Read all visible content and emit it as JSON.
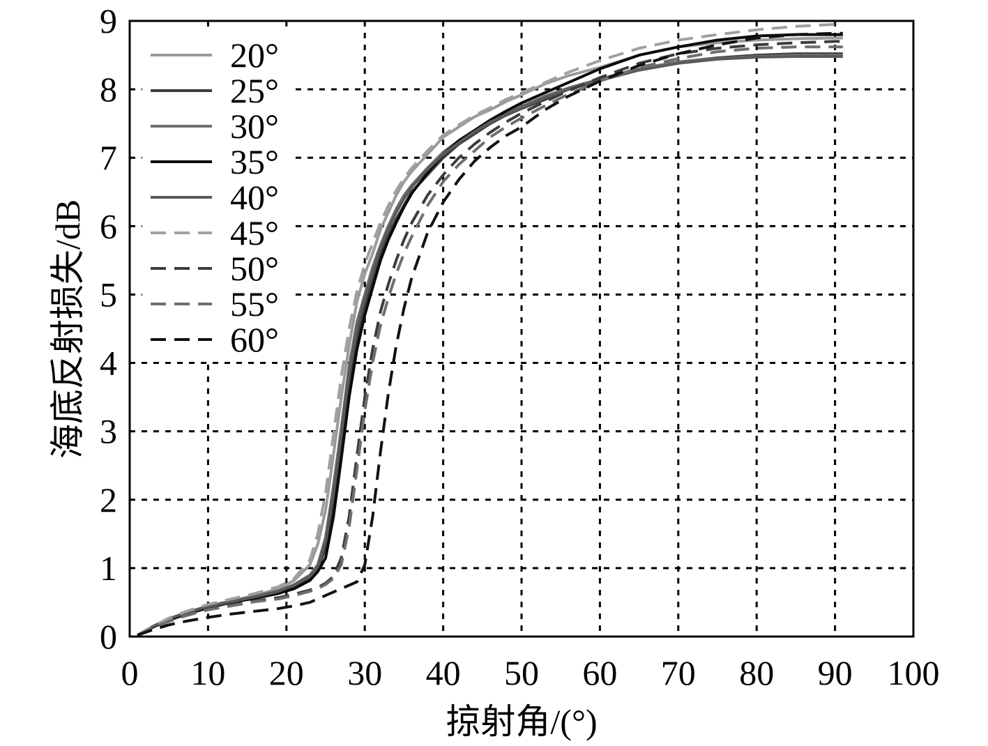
{
  "chart_data": {
    "type": "line",
    "title": "",
    "xlabel": "掠射角/(°)",
    "ylabel": "海底反射损失/dB",
    "xlim": [
      0,
      100
    ],
    "ylim": [
      0,
      9
    ],
    "xticks": [
      0,
      10,
      20,
      30,
      40,
      50,
      60,
      70,
      80,
      90,
      100
    ],
    "yticks": [
      0,
      1,
      2,
      3,
      4,
      5,
      6,
      7,
      8,
      9
    ],
    "xtick_labels": [
      "0",
      "10",
      "20",
      "30",
      "40",
      "50",
      "60",
      "70",
      "80",
      "90",
      "100"
    ],
    "ytick_labels": [
      "0",
      "1",
      "2",
      "3",
      "4",
      "5",
      "6",
      "7",
      "8",
      "9"
    ],
    "grid": true,
    "legend_position": "top-left",
    "x": [
      1,
      3,
      5,
      7,
      10,
      13,
      16,
      19,
      21,
      23,
      24,
      25,
      26,
      27,
      28,
      29,
      30,
      31,
      32,
      33,
      34,
      35,
      36,
      38,
      40,
      42,
      44,
      46,
      48,
      50,
      53,
      56,
      60,
      65,
      70,
      75,
      80,
      85,
      90,
      91
    ],
    "series": [
      {
        "name": "20°",
        "color": "#9a9a9a",
        "dash": "solid",
        "values": [
          0.02,
          0.15,
          0.26,
          0.34,
          0.45,
          0.52,
          0.6,
          0.7,
          0.82,
          1.05,
          1.35,
          1.85,
          2.65,
          3.5,
          4.25,
          4.9,
          5.3,
          5.6,
          5.95,
          6.2,
          6.45,
          6.65,
          6.8,
          7.05,
          7.3,
          7.45,
          7.6,
          7.7,
          7.82,
          7.92,
          8.08,
          8.2,
          8.32,
          8.5,
          8.62,
          8.68,
          8.72,
          8.74,
          8.75,
          8.75
        ]
      },
      {
        "name": "25°",
        "color": "#3c3c3c",
        "dash": "solid",
        "values": [
          0.02,
          0.14,
          0.25,
          0.33,
          0.43,
          0.5,
          0.57,
          0.64,
          0.72,
          0.85,
          0.98,
          1.3,
          1.95,
          2.85,
          3.75,
          4.35,
          4.8,
          5.2,
          5.6,
          5.85,
          6.1,
          6.3,
          6.5,
          6.75,
          7.0,
          7.2,
          7.35,
          7.5,
          7.62,
          7.72,
          7.85,
          8.0,
          8.15,
          8.3,
          8.4,
          8.46,
          8.5,
          8.52,
          8.52,
          8.52
        ]
      },
      {
        "name": "30°",
        "color": "#6e6e6e",
        "dash": "solid",
        "values": [
          0.02,
          0.15,
          0.26,
          0.34,
          0.44,
          0.52,
          0.59,
          0.67,
          0.76,
          0.9,
          1.05,
          1.45,
          2.2,
          3.05,
          3.95,
          4.6,
          5.0,
          5.4,
          5.72,
          6.0,
          6.25,
          6.45,
          6.6,
          6.85,
          7.08,
          7.25,
          7.4,
          7.53,
          7.65,
          7.75,
          7.9,
          8.02,
          8.15,
          8.3,
          8.4,
          8.45,
          8.48,
          8.5,
          8.5,
          8.5
        ]
      },
      {
        "name": "35°",
        "color": "#0a0a0a",
        "dash": "solid",
        "values": [
          0.02,
          0.14,
          0.24,
          0.32,
          0.42,
          0.5,
          0.56,
          0.63,
          0.7,
          0.82,
          0.95,
          1.15,
          1.75,
          2.6,
          3.5,
          4.2,
          4.7,
          5.1,
          5.5,
          5.8,
          6.05,
          6.28,
          6.48,
          6.78,
          7.05,
          7.25,
          7.4,
          7.55,
          7.68,
          7.8,
          7.95,
          8.1,
          8.3,
          8.5,
          8.62,
          8.72,
          8.78,
          8.8,
          8.8,
          8.8
        ]
      },
      {
        "name": "40°",
        "color": "#5a5a5a",
        "dash": "solid",
        "values": [
          0.02,
          0.15,
          0.26,
          0.34,
          0.44,
          0.51,
          0.58,
          0.66,
          0.75,
          0.88,
          1.02,
          1.4,
          2.1,
          2.95,
          3.85,
          4.5,
          4.95,
          5.32,
          5.68,
          5.95,
          6.2,
          6.4,
          6.57,
          6.83,
          7.05,
          7.22,
          7.38,
          7.52,
          7.63,
          7.73,
          7.88,
          8.0,
          8.13,
          8.28,
          8.38,
          8.44,
          8.47,
          8.48,
          8.48,
          8.48
        ]
      },
      {
        "name": "45°",
        "color": "#a0a0a0",
        "dash": "dashed",
        "values": [
          0.02,
          0.15,
          0.27,
          0.36,
          0.47,
          0.55,
          0.63,
          0.73,
          0.85,
          1.12,
          1.5,
          2.1,
          2.95,
          3.8,
          4.5,
          5.05,
          5.45,
          5.75,
          6.05,
          6.3,
          6.52,
          6.7,
          6.85,
          7.1,
          7.33,
          7.48,
          7.62,
          7.73,
          7.85,
          7.95,
          8.1,
          8.25,
          8.42,
          8.6,
          8.72,
          8.8,
          8.87,
          8.92,
          8.95,
          8.95
        ]
      },
      {
        "name": "50°",
        "color": "#3c3c3c",
        "dash": "dashed",
        "values": [
          0.02,
          0.13,
          0.22,
          0.3,
          0.4,
          0.46,
          0.52,
          0.57,
          0.62,
          0.68,
          0.72,
          0.78,
          0.88,
          1.15,
          1.75,
          2.65,
          3.5,
          4.2,
          4.75,
          5.15,
          5.5,
          5.8,
          6.05,
          6.45,
          6.75,
          7.0,
          7.2,
          7.37,
          7.52,
          7.65,
          7.82,
          7.98,
          8.17,
          8.38,
          8.52,
          8.6,
          8.65,
          8.68,
          8.7,
          8.7
        ]
      },
      {
        "name": "55°",
        "color": "#6e6e6e",
        "dash": "dashed",
        "values": [
          0.02,
          0.13,
          0.22,
          0.3,
          0.39,
          0.45,
          0.51,
          0.55,
          0.6,
          0.66,
          0.7,
          0.76,
          0.85,
          1.05,
          1.6,
          2.45,
          3.3,
          4.0,
          4.55,
          4.95,
          5.3,
          5.6,
          5.85,
          6.3,
          6.65,
          6.9,
          7.1,
          7.3,
          7.45,
          7.58,
          7.76,
          7.93,
          8.12,
          8.32,
          8.45,
          8.55,
          8.6,
          8.62,
          8.62,
          8.62
        ]
      },
      {
        "name": "60°",
        "color": "#111111",
        "dash": "dashed",
        "values": [
          0.02,
          0.1,
          0.17,
          0.22,
          0.28,
          0.33,
          0.37,
          0.41,
          0.45,
          0.5,
          0.55,
          0.6,
          0.65,
          0.7,
          0.75,
          0.8,
          1.05,
          1.75,
          2.7,
          3.55,
          4.25,
          4.8,
          5.25,
          5.9,
          6.35,
          6.68,
          6.95,
          7.15,
          7.32,
          7.45,
          7.7,
          7.9,
          8.12,
          8.35,
          8.52,
          8.65,
          8.75,
          8.8,
          8.82,
          8.82
        ]
      }
    ]
  }
}
